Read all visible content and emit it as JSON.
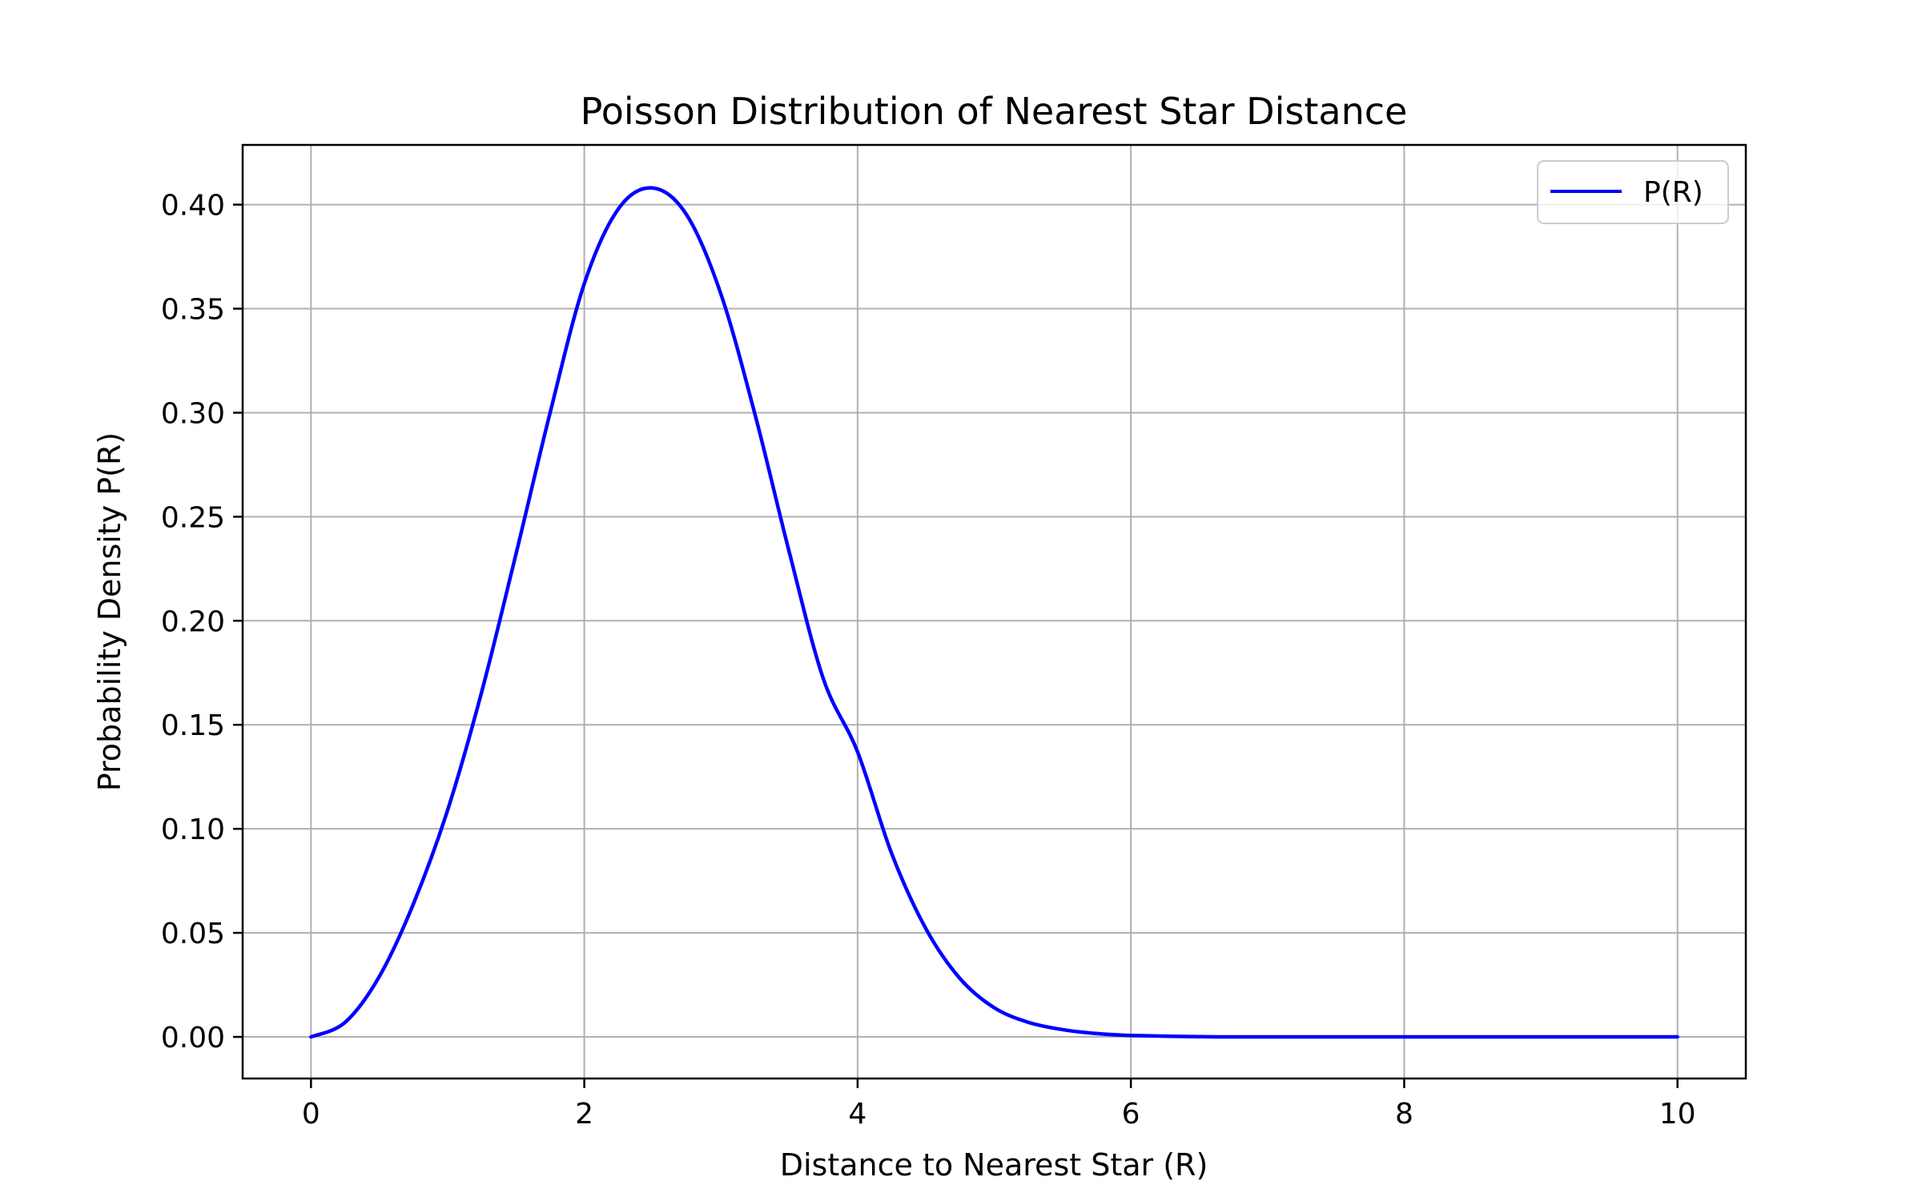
{
  "chart_data": {
    "type": "line",
    "title": "Poisson Distribution of Nearest Star Distance",
    "xlabel": "Distance to Nearest Star (R)",
    "ylabel": "Probability Density P(R)",
    "xlim": [
      -0.5,
      10.5
    ],
    "ylim": [
      -0.02,
      0.4287
    ],
    "xticks": [
      0,
      2,
      4,
      6,
      8,
      10
    ],
    "xtick_labels": [
      "0",
      "2",
      "4",
      "6",
      "8",
      "10"
    ],
    "yticks": [
      0.0,
      0.05,
      0.1,
      0.15,
      0.2,
      0.25,
      0.3,
      0.35,
      0.4
    ],
    "ytick_labels": [
      "0.00",
      "0.05",
      "0.10",
      "0.15",
      "0.20",
      "0.25",
      "0.30",
      "0.35",
      "0.40"
    ],
    "grid": true,
    "legend": {
      "position": "upper-right"
    },
    "series": [
      {
        "name": "P(R)",
        "color": "#0000ff",
        "x": [
          0,
          0.25,
          0.5,
          0.75,
          1.0,
          1.25,
          1.5,
          1.75,
          2.0,
          2.25,
          2.5,
          2.75,
          3.0,
          3.25,
          3.5,
          3.75,
          4.0,
          4.25,
          4.5,
          4.75,
          5.0,
          5.25,
          5.5,
          5.75,
          6.0,
          6.5,
          7.0,
          8.0,
          9.0,
          10.0
        ],
        "y": [
          0.0,
          0.007,
          0.029,
          0.064,
          0.109,
          0.166,
          0.232,
          0.3,
          0.362,
          0.398,
          0.408,
          0.395,
          0.357,
          0.299,
          0.233,
          0.172,
          0.137,
          0.088,
          0.052,
          0.028,
          0.014,
          0.007,
          0.0035,
          0.0016,
          0.0007,
          0.0001,
          0.0,
          0.0,
          0.0,
          0.0
        ]
      }
    ]
  }
}
